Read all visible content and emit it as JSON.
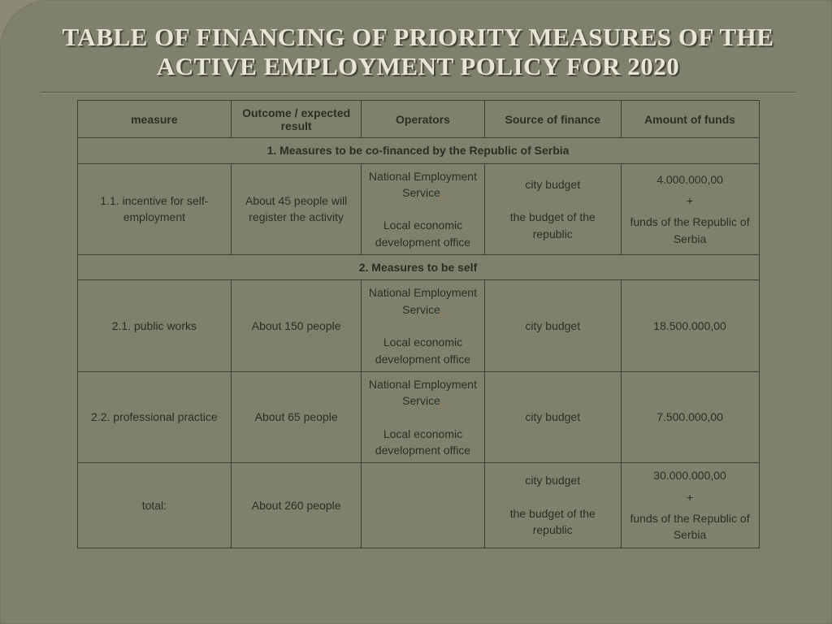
{
  "slide": {
    "title": "TABLE OF FINANCING OF PRIORITY MEASURES OF THE ACTIVE EMPLOYMENT POLICY FOR 2020",
    "background_color": "#80816c",
    "title_color": "#e7e5d5",
    "title_shadow": "rgba(0,0,0,.5)",
    "border_color": "#3e3e33",
    "accent_comma_color": "#c27a2e"
  },
  "table": {
    "headers": {
      "c1": "measure",
      "c2": "Outcome / expected result",
      "c3": "Operators",
      "c4": "Source of finance",
      "c5": "Amount of funds"
    },
    "section1": "1. Measures to be co-financed by the Republic of Serbia",
    "r1": {
      "measure": "1.1. incentive for self-employment",
      "result": "About 45 people will register the activity",
      "ops_a": "National Employment Service",
      "ops_b": "Local economic development office",
      "src_a": "city budget",
      "src_b": "the budget of the republic",
      "amt_a": "4.000.000,00",
      "amt_plus": "+",
      "amt_b": "funds of the Republic of Serbia"
    },
    "section2": "2. Measures to be self",
    "r2": {
      "measure": "2.1. public works",
      "result": "About 150 people",
      "ops_a": "National Employment Service",
      "ops_b": "Local economic development office",
      "src": "city budget",
      "amt": "18.500.000,00"
    },
    "r3": {
      "measure": "2.2. professional practice",
      "result": "About 65 people",
      "ops_a": "National Employment Service",
      "ops_b": "Local economic development office",
      "src": "city budget",
      "amt": "7.500.000,00"
    },
    "r4": {
      "measure": "total:",
      "result": "About 260 people",
      "ops": "",
      "src_a": "city budget",
      "src_b": "the budget of the republic",
      "amt_a": "30.000.000,00",
      "amt_plus": "+",
      "amt_b": "funds of the Republic of Serbia"
    }
  }
}
